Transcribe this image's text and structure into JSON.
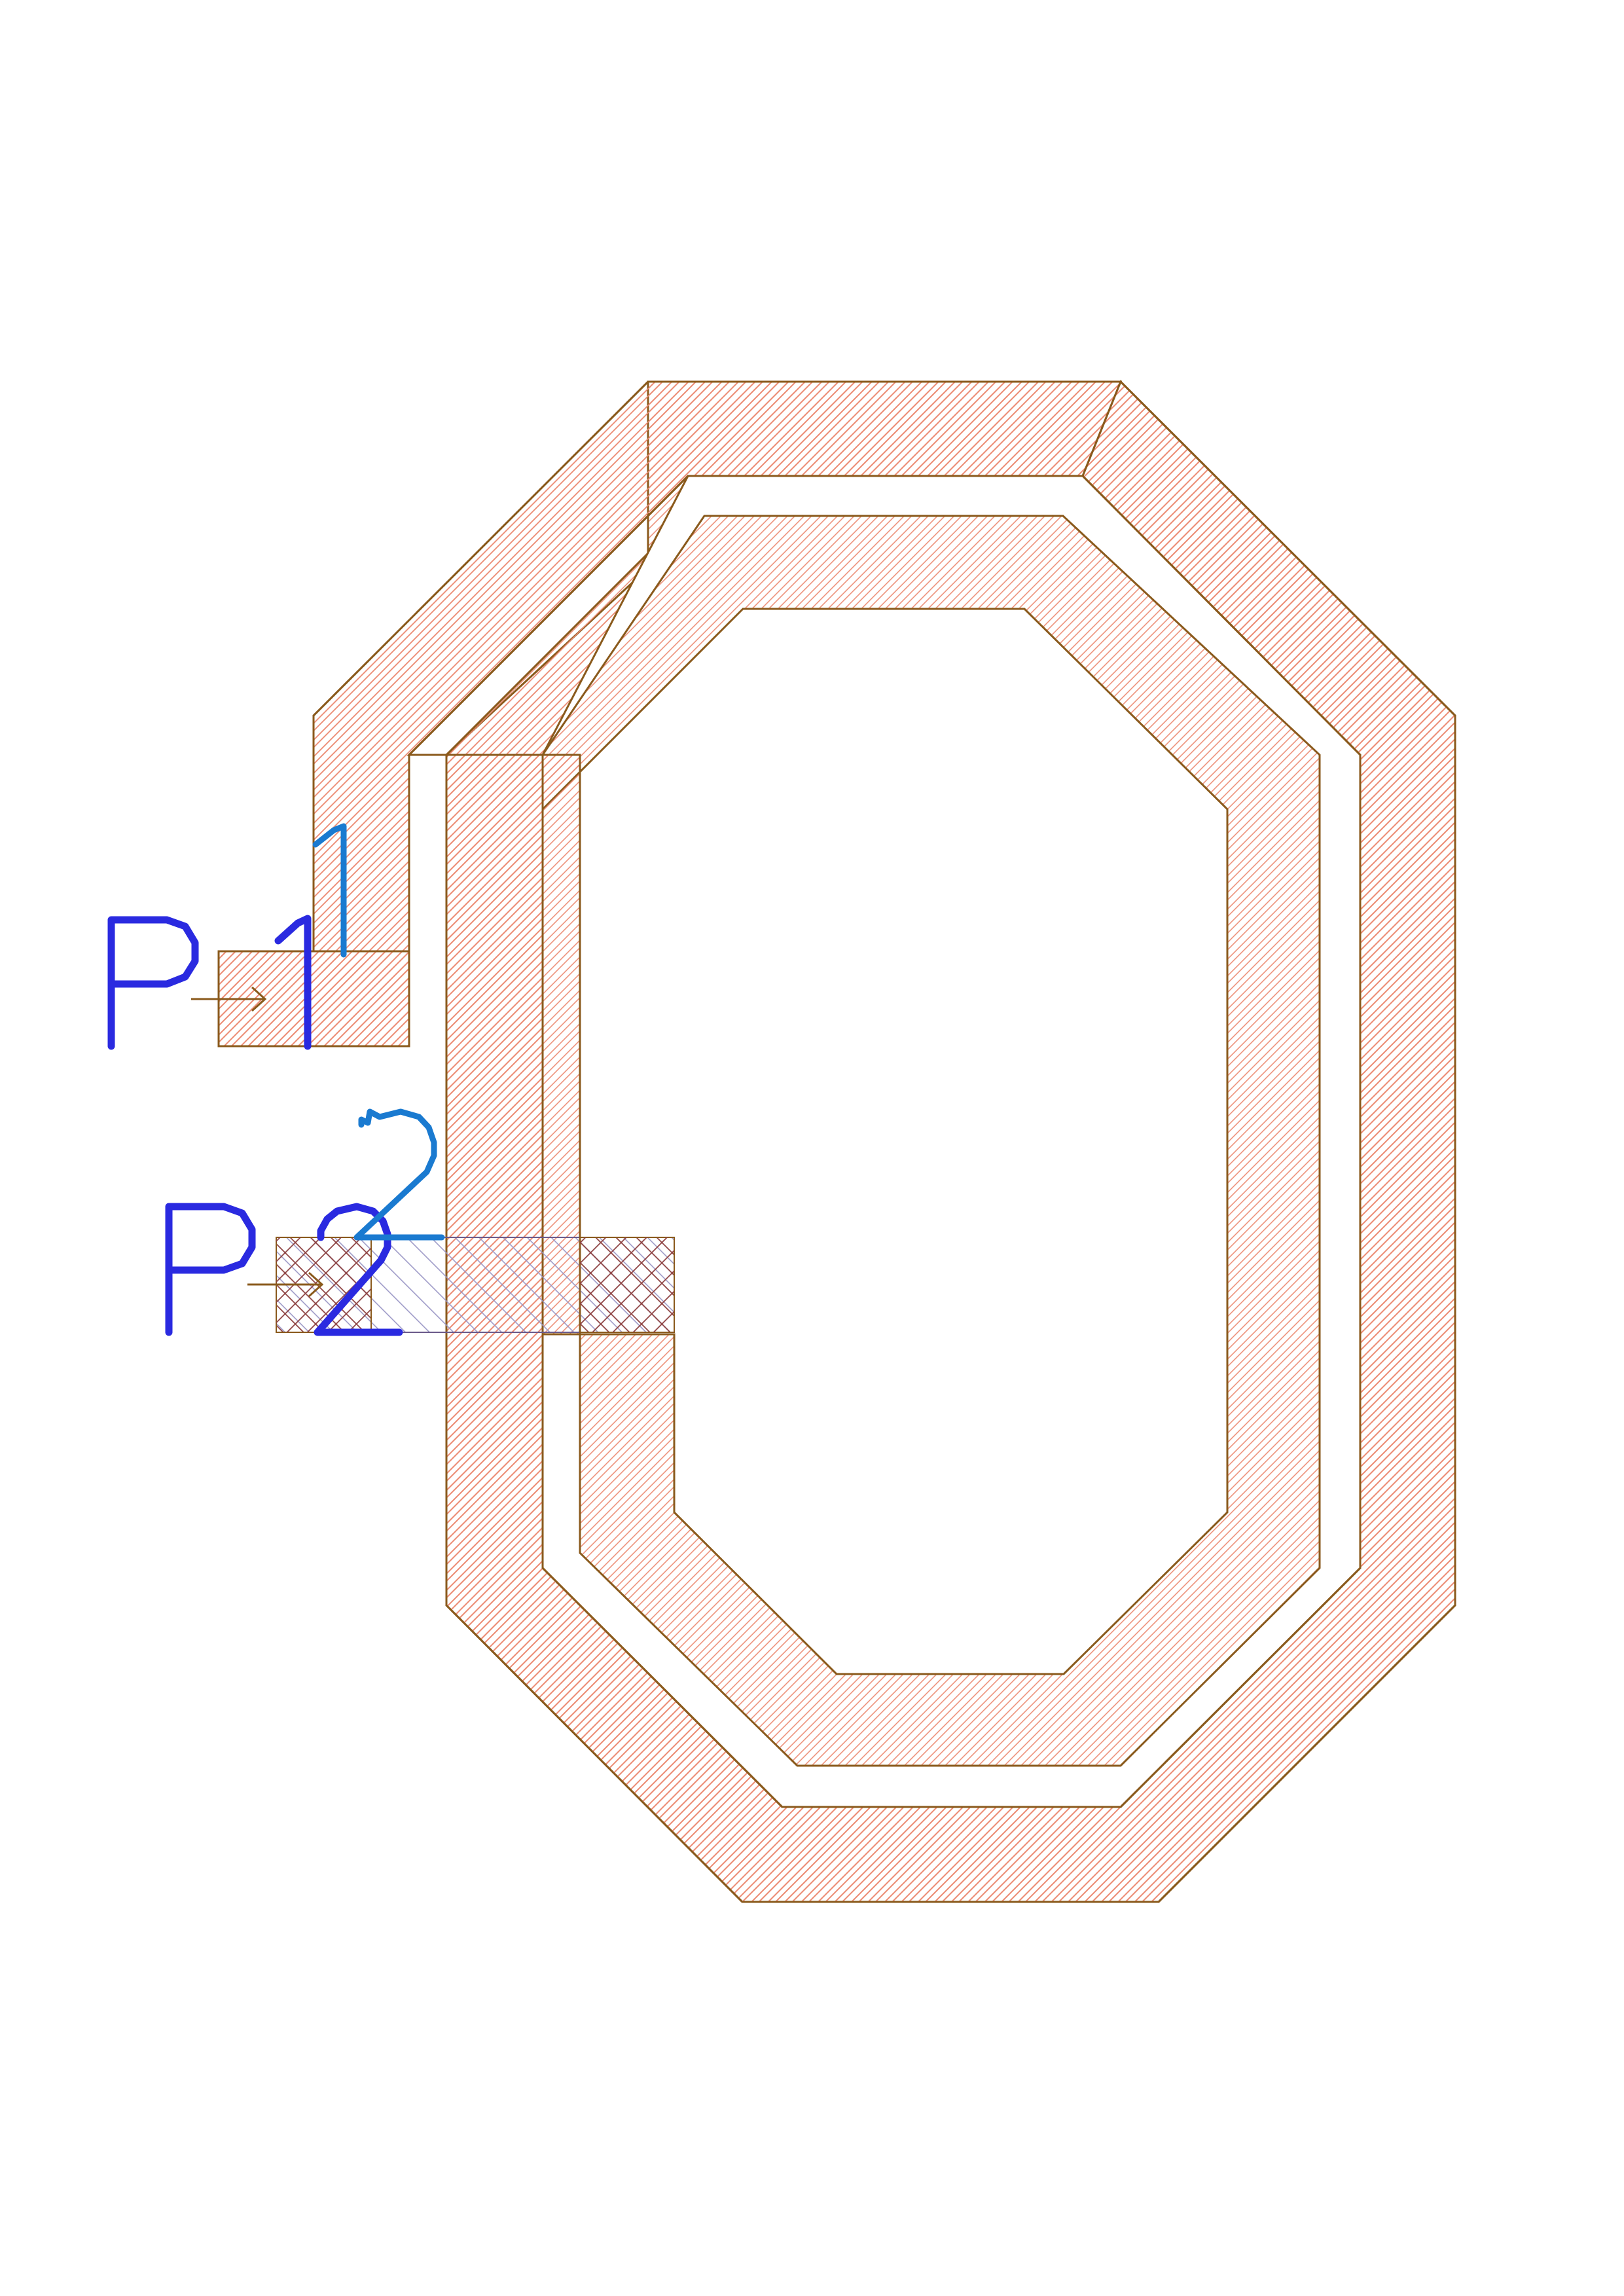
{
  "diagram": {
    "colors": {
      "metal_outline": "#8a5a1c",
      "metal_hatch": "#e8785e",
      "underpass_hatch": "#8a86b8",
      "via_hatch": "#8a3a3a",
      "port_label": "#2a2ae0",
      "pin_label": "#1a7ad0"
    },
    "ports": [
      {
        "name": "P1",
        "prefix": "P",
        "number": "1",
        "pin": "1"
      },
      {
        "name": "P2",
        "prefix": "P",
        "number": "2",
        "pin": "2"
      }
    ]
  }
}
